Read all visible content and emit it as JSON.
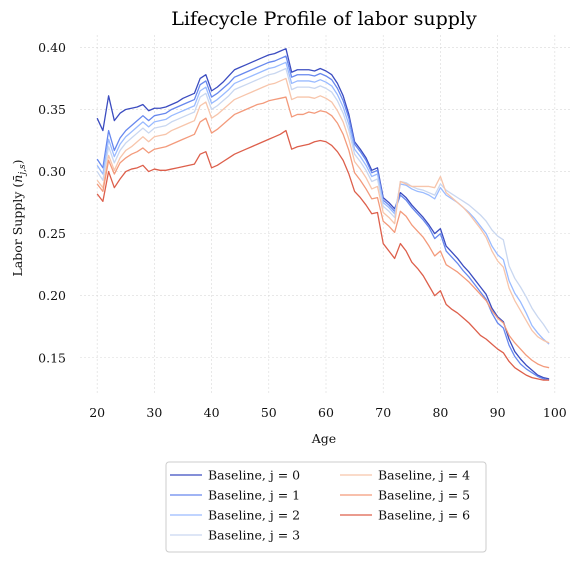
{
  "chart_data": {
    "type": "line",
    "title": "Lifecycle Profile of labor supply",
    "xlabel": "Age",
    "ylabel": "Labor Supply (n̄_{j,s})",
    "xlim": [
      17,
      103
    ],
    "ylim": [
      0.12,
      0.41
    ],
    "xticks": [
      20,
      30,
      40,
      50,
      60,
      70,
      80,
      90,
      100
    ],
    "yticks": [
      0.15,
      0.2,
      0.25,
      0.3,
      0.35,
      0.4
    ],
    "grid": true,
    "legend_position": "bottom-center",
    "x": [
      20,
      21,
      22,
      23,
      24,
      25,
      26,
      27,
      28,
      29,
      30,
      31,
      32,
      33,
      34,
      35,
      36,
      37,
      38,
      39,
      40,
      41,
      42,
      43,
      44,
      45,
      46,
      47,
      48,
      49,
      50,
      51,
      52,
      53,
      54,
      55,
      56,
      57,
      58,
      59,
      60,
      61,
      62,
      63,
      64,
      65,
      66,
      67,
      68,
      69,
      70,
      71,
      72,
      73,
      74,
      75,
      76,
      77,
      78,
      79,
      80,
      81,
      82,
      83,
      84,
      85,
      86,
      87,
      88,
      89,
      90,
      91,
      92,
      93,
      94,
      95,
      96,
      97,
      98,
      99
    ],
    "series": [
      {
        "name": "Baseline, j = 0",
        "color": "#3b4cc0",
        "values": [
          0.343,
          0.333,
          0.361,
          0.341,
          0.347,
          0.35,
          0.351,
          0.352,
          0.354,
          0.349,
          0.351,
          0.351,
          0.352,
          0.354,
          0.356,
          0.359,
          0.361,
          0.363,
          0.375,
          0.378,
          0.365,
          0.368,
          0.372,
          0.377,
          0.382,
          0.384,
          0.386,
          0.388,
          0.39,
          0.392,
          0.394,
          0.395,
          0.397,
          0.399,
          0.38,
          0.382,
          0.382,
          0.382,
          0.381,
          0.383,
          0.381,
          0.378,
          0.371,
          0.361,
          0.346,
          0.324,
          0.318,
          0.311,
          0.301,
          0.303,
          0.279,
          0.275,
          0.27,
          0.283,
          0.279,
          0.273,
          0.268,
          0.263,
          0.257,
          0.25,
          0.254,
          0.24,
          0.235,
          0.23,
          0.224,
          0.219,
          0.213,
          0.207,
          0.201,
          0.19,
          0.183,
          0.179,
          0.165,
          0.155,
          0.149,
          0.144,
          0.14,
          0.136,
          0.134,
          0.133
        ]
      },
      {
        "name": "Baseline, j = 1",
        "color": "#6788ee",
        "values": [
          0.31,
          0.303,
          0.333,
          0.317,
          0.327,
          0.333,
          0.337,
          0.341,
          0.345,
          0.341,
          0.345,
          0.346,
          0.347,
          0.35,
          0.352,
          0.354,
          0.356,
          0.358,
          0.37,
          0.373,
          0.36,
          0.363,
          0.367,
          0.371,
          0.376,
          0.378,
          0.38,
          0.382,
          0.384,
          0.386,
          0.388,
          0.389,
          0.391,
          0.393,
          0.376,
          0.378,
          0.378,
          0.378,
          0.377,
          0.379,
          0.377,
          0.374,
          0.367,
          0.357,
          0.343,
          0.322,
          0.316,
          0.309,
          0.299,
          0.301,
          0.277,
          0.273,
          0.268,
          0.281,
          0.277,
          0.271,
          0.266,
          0.261,
          0.255,
          0.246,
          0.25,
          0.236,
          0.231,
          0.226,
          0.22,
          0.215,
          0.209,
          0.203,
          0.197,
          0.186,
          0.178,
          0.174,
          0.16,
          0.151,
          0.145,
          0.141,
          0.138,
          0.135,
          0.133,
          0.132
        ]
      },
      {
        "name": "Baseline, j = 2",
        "color": "#9abbff",
        "values": [
          0.305,
          0.298,
          0.326,
          0.312,
          0.322,
          0.328,
          0.332,
          0.336,
          0.34,
          0.336,
          0.34,
          0.341,
          0.342,
          0.345,
          0.347,
          0.349,
          0.351,
          0.353,
          0.365,
          0.368,
          0.355,
          0.358,
          0.362,
          0.366,
          0.371,
          0.373,
          0.375,
          0.377,
          0.379,
          0.381,
          0.383,
          0.384,
          0.386,
          0.388,
          0.371,
          0.373,
          0.373,
          0.373,
          0.372,
          0.374,
          0.372,
          0.369,
          0.362,
          0.352,
          0.338,
          0.318,
          0.312,
          0.305,
          0.296,
          0.298,
          0.275,
          0.271,
          0.266,
          0.29,
          0.289,
          0.286,
          0.284,
          0.283,
          0.281,
          0.278,
          0.287,
          0.281,
          0.278,
          0.275,
          0.271,
          0.267,
          0.262,
          0.256,
          0.25,
          0.24,
          0.233,
          0.229,
          0.212,
          0.202,
          0.195,
          0.186,
          0.176,
          0.17,
          0.165,
          0.161
        ]
      },
      {
        "name": "Baseline, j = 3",
        "color": "#c9d7f0",
        "values": [
          0.3,
          0.293,
          0.32,
          0.307,
          0.317,
          0.323,
          0.327,
          0.331,
          0.335,
          0.331,
          0.335,
          0.336,
          0.337,
          0.34,
          0.342,
          0.344,
          0.346,
          0.348,
          0.36,
          0.363,
          0.35,
          0.353,
          0.357,
          0.361,
          0.366,
          0.368,
          0.37,
          0.372,
          0.374,
          0.376,
          0.378,
          0.379,
          0.381,
          0.383,
          0.366,
          0.368,
          0.368,
          0.368,
          0.367,
          0.369,
          0.367,
          0.364,
          0.357,
          0.347,
          0.333,
          0.314,
          0.308,
          0.301,
          0.292,
          0.294,
          0.272,
          0.268,
          0.263,
          0.292,
          0.291,
          0.288,
          0.286,
          0.285,
          0.283,
          0.281,
          0.29,
          0.285,
          0.282,
          0.279,
          0.276,
          0.273,
          0.269,
          0.265,
          0.26,
          0.253,
          0.248,
          0.245,
          0.224,
          0.214,
          0.207,
          0.199,
          0.19,
          0.183,
          0.177,
          0.17
        ]
      },
      {
        "name": "Baseline, j = 4",
        "color": "#f7c5ab",
        "values": [
          0.293,
          0.287,
          0.313,
          0.301,
          0.311,
          0.317,
          0.32,
          0.324,
          0.328,
          0.324,
          0.328,
          0.329,
          0.33,
          0.333,
          0.335,
          0.337,
          0.339,
          0.341,
          0.353,
          0.356,
          0.343,
          0.346,
          0.35,
          0.354,
          0.358,
          0.36,
          0.362,
          0.364,
          0.366,
          0.368,
          0.37,
          0.371,
          0.373,
          0.375,
          0.358,
          0.36,
          0.36,
          0.36,
          0.359,
          0.361,
          0.359,
          0.356,
          0.349,
          0.34,
          0.326,
          0.308,
          0.302,
          0.295,
          0.286,
          0.288,
          0.267,
          0.263,
          0.258,
          0.292,
          0.29,
          0.288,
          0.288,
          0.288,
          0.288,
          0.287,
          0.296,
          0.283,
          0.279,
          0.275,
          0.271,
          0.266,
          0.26,
          0.254,
          0.247,
          0.236,
          0.228,
          0.223,
          0.206,
          0.196,
          0.188,
          0.18,
          0.172,
          0.167,
          0.164,
          0.162
        ]
      },
      {
        "name": "Baseline, j = 5",
        "color": "#f39a7b",
        "values": [
          0.29,
          0.284,
          0.309,
          0.298,
          0.307,
          0.311,
          0.314,
          0.316,
          0.319,
          0.315,
          0.318,
          0.319,
          0.32,
          0.322,
          0.324,
          0.326,
          0.328,
          0.33,
          0.34,
          0.343,
          0.331,
          0.334,
          0.338,
          0.342,
          0.346,
          0.348,
          0.35,
          0.352,
          0.354,
          0.355,
          0.357,
          0.358,
          0.359,
          0.36,
          0.344,
          0.346,
          0.346,
          0.348,
          0.347,
          0.349,
          0.348,
          0.345,
          0.339,
          0.33,
          0.317,
          0.299,
          0.293,
          0.286,
          0.278,
          0.279,
          0.26,
          0.256,
          0.251,
          0.268,
          0.264,
          0.257,
          0.252,
          0.247,
          0.24,
          0.232,
          0.236,
          0.225,
          0.222,
          0.219,
          0.215,
          0.211,
          0.206,
          0.201,
          0.196,
          0.188,
          0.182,
          0.178,
          0.168,
          0.162,
          0.157,
          0.152,
          0.148,
          0.145,
          0.143,
          0.142
        ]
      },
      {
        "name": "Baseline, j = 6",
        "color": "#dd5f4b",
        "values": [
          0.282,
          0.276,
          0.3,
          0.287,
          0.294,
          0.3,
          0.302,
          0.303,
          0.305,
          0.3,
          0.302,
          0.301,
          0.301,
          0.302,
          0.303,
          0.304,
          0.305,
          0.306,
          0.314,
          0.316,
          0.303,
          0.305,
          0.308,
          0.311,
          0.314,
          0.316,
          0.318,
          0.32,
          0.322,
          0.324,
          0.326,
          0.328,
          0.33,
          0.333,
          0.318,
          0.32,
          0.321,
          0.322,
          0.324,
          0.325,
          0.324,
          0.321,
          0.316,
          0.309,
          0.298,
          0.284,
          0.279,
          0.273,
          0.266,
          0.267,
          0.242,
          0.236,
          0.23,
          0.242,
          0.236,
          0.227,
          0.222,
          0.216,
          0.208,
          0.2,
          0.204,
          0.193,
          0.189,
          0.186,
          0.182,
          0.178,
          0.173,
          0.168,
          0.165,
          0.161,
          0.157,
          0.154,
          0.147,
          0.142,
          0.139,
          0.136,
          0.134,
          0.133,
          0.132,
          0.132
        ]
      }
    ]
  }
}
